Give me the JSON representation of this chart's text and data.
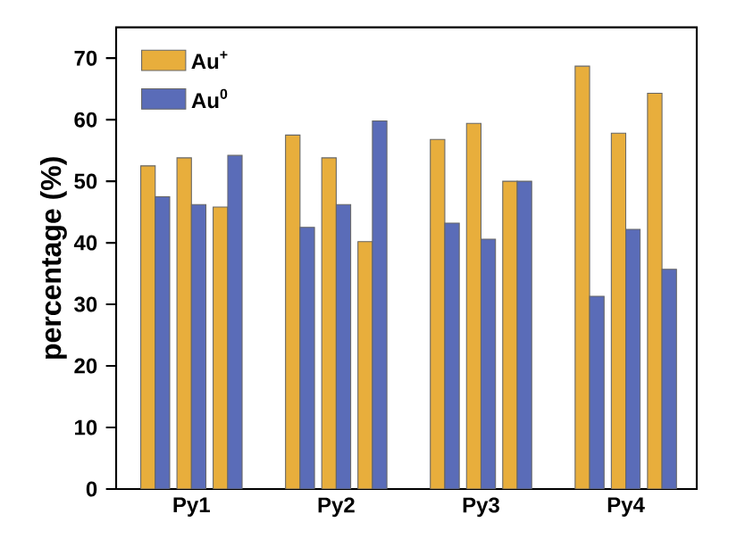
{
  "chart_data": {
    "type": "bar",
    "ylabel": "percentage (%)",
    "categories": [
      "Py1",
      "Py2",
      "Py3",
      "Py4"
    ],
    "series": [
      {
        "name": "Au$^{+}$",
        "color": "#e8ae3c",
        "values": [
          52.5,
          57.5,
          56.8,
          68.7
        ]
      },
      {
        "name": "Au$^{0}$",
        "color": "#5a6cb8",
        "values": [
          47.5,
          42.5,
          43.2,
          31.3
        ]
      },
      {
        "color": "#e8ae3c",
        "values": [
          53.8,
          53.8,
          59.4,
          57.8
        ]
      },
      {
        "color": "#5a6cb8",
        "values": [
          46.2,
          46.2,
          40.6,
          42.2
        ]
      },
      {
        "color": "#e8ae3c",
        "values": [
          45.8,
          40.2,
          50,
          64.3
        ]
      },
      {
        "color": "#5a6cb8",
        "values": [
          54.2,
          59.8,
          50,
          35.7
        ]
      }
    ],
    "ylim": [
      0,
      75
    ],
    "yticks": [
      0,
      10,
      20,
      30,
      40,
      50,
      60,
      70
    ],
    "grid": false,
    "legend": "top left"
  }
}
